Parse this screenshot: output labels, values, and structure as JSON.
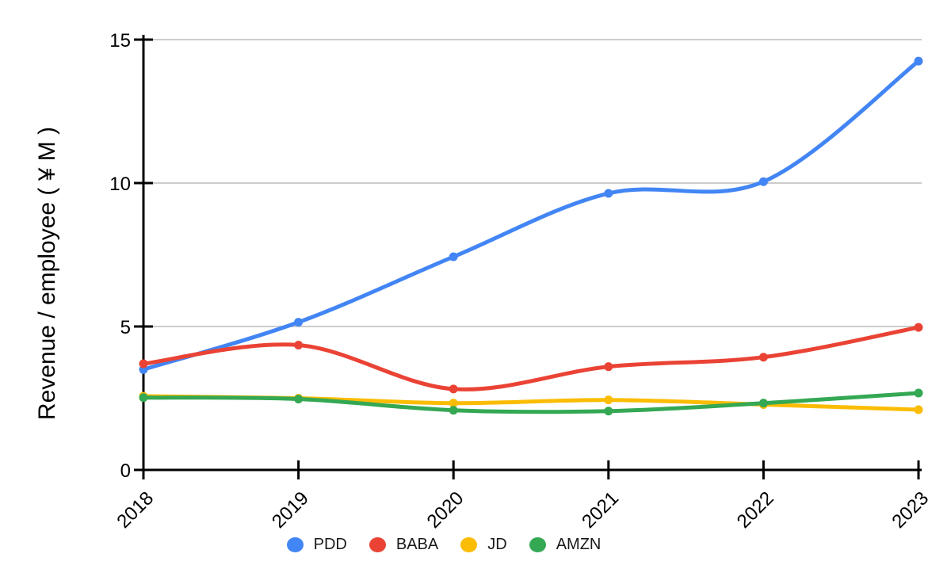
{
  "chart_data": {
    "type": "line",
    "title": "",
    "xlabel": "",
    "ylabel": "Revenue / employee ( ¥ M )",
    "x": [
      "2018",
      "2019",
      "2020",
      "2021",
      "2022",
      "2023"
    ],
    "y_ticks": [
      0,
      5,
      10,
      15
    ],
    "ylim": [
      0,
      15
    ],
    "grid": true,
    "curve": "smooth",
    "legend_position": "bottom",
    "series": [
      {
        "name": "PDD",
        "color": "#4285F4",
        "values": [
          3.5,
          5.15,
          7.43,
          9.64,
          10.05,
          14.25
        ]
      },
      {
        "name": "BABA",
        "color": "#EA4335",
        "values": [
          3.7,
          4.35,
          2.82,
          3.6,
          3.93,
          4.97
        ]
      },
      {
        "name": "JD",
        "color": "#FBBC04",
        "values": [
          2.57,
          2.5,
          2.33,
          2.44,
          2.28,
          2.1
        ]
      },
      {
        "name": "AMZN",
        "color": "#34A853",
        "values": [
          2.52,
          2.47,
          2.08,
          2.05,
          2.33,
          2.68
        ]
      }
    ],
    "colors": {
      "axis": "#000000",
      "gridline": "#cccccc",
      "background": "#ffffff",
      "tick_text": "#000000"
    }
  }
}
